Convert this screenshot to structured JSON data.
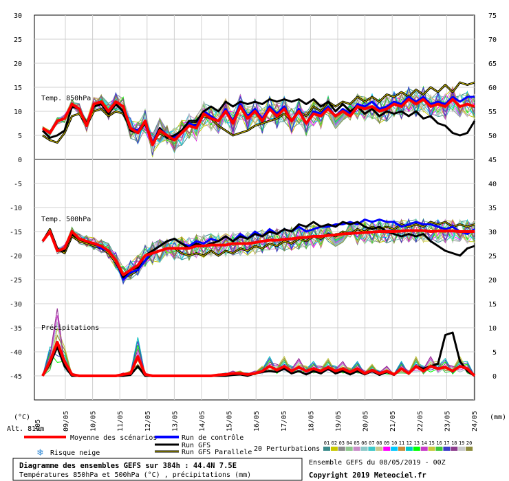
{
  "chart_data": {
    "type": "line",
    "title": "Diagramme des ensembles GEFS sur 384h : 44.4N 7.5E",
    "subtitle": "Températures 850hPa et 500hPa (°C) , précipitations (mm)",
    "left_axis": {
      "ticks": [
        "30",
        "25",
        "20",
        "15",
        "10",
        "5",
        "0",
        "-5",
        "-10",
        "-15",
        "-20",
        "-25",
        "-30",
        "-35",
        "-40",
        "-45"
      ],
      "unit": "(°C)"
    },
    "right_axis": {
      "ticks": [
        "75",
        "70",
        "65",
        "60",
        "55",
        "50",
        "45",
        "40",
        "35",
        "30",
        "25",
        "20",
        "15",
        "10",
        "5",
        "0"
      ],
      "unit": "(mm)"
    },
    "x_ticks": [
      "09/05",
      "10/05",
      "11/05",
      "12/05",
      "13/05",
      "14/05",
      "15/05",
      "16/05",
      "17/05",
      "18/05",
      "19/05",
      "20/05",
      "21/05",
      "22/05",
      "23/05",
      "24/05"
    ],
    "x_first_tick_partial": "/05",
    "alt_label": "Alt. 819m",
    "panels": {
      "t850": "Temp. 850hPa",
      "t500": "Temp. 500hPa",
      "precip": "Précipitations"
    },
    "t850_mean": [
      6.5,
      5.5,
      8,
      8.5,
      11.5,
      10.5,
      7,
      11.5,
      12,
      10,
      12,
      11,
      6.5,
      5.5,
      8,
      3,
      6,
      5,
      4,
      5.5,
      7,
      6.5,
      9.5,
      8.5,
      8,
      10,
      7.5,
      11,
      8.5,
      10,
      8,
      10.5,
      9,
      10.5,
      8,
      10,
      7.5,
      9.5,
      9,
      10.5,
      9,
      10,
      9,
      11,
      10.5,
      11,
      10,
      10.5,
      11.5,
      11,
      12.5,
      11.5,
      12.5,
      11,
      11.5,
      11,
      12.5,
      11,
      11.5,
      11
    ],
    "t850_control": [
      6.5,
      5.5,
      8,
      8.5,
      11.5,
      10.5,
      7,
      11.5,
      12,
      10,
      12,
      11,
      6.5,
      6,
      8,
      3.5,
      6.5,
      5,
      4.5,
      6,
      7.5,
      7,
      10,
      9,
      8,
      10.5,
      8,
      11.5,
      9,
      10.5,
      8.5,
      11,
      9.5,
      11,
      8,
      10.5,
      7.5,
      10,
      9.5,
      11,
      9,
      10.5,
      9.5,
      11.5,
      11,
      12,
      10.5,
      11,
      12,
      11.5,
      13,
      12,
      13,
      11.5,
      12,
      11.5,
      13,
      12,
      13,
      13
    ],
    "t850_gfs": [
      6,
      4.5,
      5,
      6,
      11,
      10.5,
      7.5,
      11,
      11.5,
      9.5,
      11.5,
      10,
      6,
      5.5,
      7.5,
      3,
      6.5,
      4.5,
      5,
      6,
      8,
      8,
      10,
      11,
      10,
      12,
      11,
      12,
      11.5,
      12,
      11.5,
      12.5,
      12,
      12.5,
      12,
      12.5,
      11.5,
      12.5,
      11,
      12,
      10,
      11.5,
      10,
      11,
      9.5,
      10.5,
      9,
      10,
      9.5,
      10,
      9,
      10,
      8.5,
      9,
      7.5,
      7,
      5.5,
      5,
      5.5,
      8
    ],
    "t850_parallel": [
      5,
      4,
      3.5,
      5.5,
      9,
      9.5,
      7,
      10,
      10.5,
      9,
      10,
      9.5,
      6.5,
      6,
      7.5,
      3.5,
      5.5,
      4.5,
      4,
      5.5,
      7.5,
      7.5,
      9,
      8.5,
      7,
      6,
      5,
      5.5,
      6,
      7,
      7.5,
      8,
      8.5,
      9.5,
      8,
      10,
      9,
      11,
      10,
      12,
      11,
      12,
      11.5,
      13,
      12,
      13,
      12,
      13.5,
      13,
      14,
      13,
      14.5,
      13.5,
      15,
      14,
      15.5,
      14,
      16,
      15.5,
      16
    ],
    "t500_mean": [
      -17,
      -15,
      -19,
      -18.5,
      -15,
      -16.5,
      -17,
      -17.5,
      -18,
      -19,
      -21,
      -24,
      -23,
      -22,
      -20,
      -19.5,
      -19,
      -18.5,
      -18.5,
      -18.5,
      -18.5,
      -18,
      -18,
      -17.8,
      -17.8,
      -17.8,
      -17.5,
      -17.5,
      -17.5,
      -17.3,
      -17,
      -16.8,
      -16.8,
      -16.6,
      -16.5,
      -16.3,
      -16.2,
      -16,
      -16,
      -15.8,
      -15.7,
      -15.5,
      -15.4,
      -15.3,
      -15.2,
      -15.1,
      -15,
      -15,
      -15,
      -14.9,
      -14.8,
      -14.8,
      -14.8,
      -15,
      -14.9,
      -14.9,
      -14.9,
      -15,
      -15,
      -15
    ],
    "t500_control": [
      -17,
      -15,
      -19,
      -18.5,
      -15,
      -16.5,
      -17,
      -17.5,
      -18.5,
      -19,
      -21,
      -25,
      -23.5,
      -23,
      -21,
      -19,
      -18,
      -17,
      -16.5,
      -17.5,
      -18,
      -17,
      -17.5,
      -16.5,
      -17,
      -16,
      -17,
      -15.5,
      -16.5,
      -15,
      -16,
      -14.5,
      -15.5,
      -14.5,
      -15,
      -14,
      -15,
      -14.5,
      -14,
      -14,
      -13.5,
      -13.5,
      -13,
      -13.5,
      -12.5,
      -13,
      -12.5,
      -13,
      -13,
      -14,
      -13.5,
      -13,
      -13.5,
      -13.5,
      -14,
      -14.5,
      -14,
      -15,
      -15.5,
      -14.5
    ],
    "t500_gfs": [
      -17,
      -15,
      -19,
      -19,
      -15.5,
      -16.5,
      -17,
      -17.5,
      -18,
      -19,
      -21,
      -24.5,
      -23,
      -22.5,
      -20,
      -19,
      -18,
      -17,
      -16.5,
      -17.5,
      -18.5,
      -17.5,
      -18,
      -17.5,
      -17,
      -16,
      -17,
      -16,
      -16.5,
      -15.5,
      -16,
      -15,
      -15.5,
      -14.5,
      -15,
      -13.5,
      -14,
      -13,
      -14,
      -13.5,
      -14,
      -13,
      -13.5,
      -13,
      -14,
      -14.5,
      -14,
      -15,
      -15.5,
      -16,
      -15.5,
      -16,
      -15.5,
      -17,
      -18,
      -19,
      -19.5,
      -20,
      -18.5,
      -18
    ],
    "t500_parallel": [
      -17,
      -14.5,
      -18.5,
      -19.5,
      -16,
      -17,
      -17.5,
      -18,
      -18.5,
      -19.5,
      -21.5,
      -24.5,
      -24,
      -23,
      -21,
      -19.5,
      -19,
      -18.5,
      -18.5,
      -19.5,
      -20,
      -19.5,
      -20,
      -19,
      -20,
      -19,
      -19.5,
      -18.5,
      -19,
      -18,
      -18.5,
      -17.5,
      -18,
      -17,
      -17.5,
      -16.5,
      -17,
      -16,
      -16.5,
      -15.5,
      -16,
      -15,
      -15.5,
      -14.5,
      -15,
      -14,
      -14.5,
      -14,
      -14.5,
      -13.5,
      -14,
      -13.5,
      -14,
      -13,
      -13.5,
      -13,
      -14,
      -13.5,
      -14,
      -13.5
    ],
    "precip_mean": [
      0,
      3,
      7,
      3,
      0.3,
      0,
      0,
      0,
      0,
      0,
      0,
      0.3,
      0.5,
      4,
      0.3,
      0,
      0,
      0,
      0,
      0,
      0,
      0,
      0,
      0,
      0.2,
      0.3,
      0.5,
      0.5,
      0.3,
      0.5,
      1,
      2,
      1.2,
      2,
      1,
      1.8,
      1,
      1.5,
      1,
      1.8,
      1,
      1.5,
      0.8,
      1.5,
      0.5,
      1.2,
      0.5,
      1,
      0.3,
      1.5,
      0.5,
      2,
      1,
      2,
      1.5,
      1.8,
      1,
      2,
      1.5,
      0
    ],
    "precip_gfs": [
      0,
      2.5,
      6,
      2,
      0,
      0,
      0,
      0,
      0,
      0,
      0,
      0,
      0.2,
      2,
      0,
      0,
      0,
      0,
      0,
      0,
      0,
      0,
      0,
      0,
      0,
      0,
      0.2,
      0.3,
      0,
      0.5,
      0.8,
      1,
      0.8,
      1.5,
      0.5,
      1,
      0.3,
      1,
      0.5,
      1.5,
      0.5,
      1,
      0.3,
      1,
      0.3,
      1,
      0.2,
      0.8,
      0.2,
      1.5,
      0.5,
      2,
      1.5,
      2,
      2.5,
      8.5,
      9,
      3,
      1,
      0
    ],
    "legend": {
      "mean": "Moyenne des scénarios",
      "snow": "Risque neige",
      "control": "Run de contrôle",
      "gfs": "Run GFS",
      "parallel": "Run GFS Parallele",
      "perturbations": "20 Perturbations",
      "pert_numbers": [
        "01",
        "02",
        "03",
        "04",
        "05",
        "06",
        "07",
        "08",
        "09",
        "10",
        "11",
        "12",
        "13",
        "14",
        "15",
        "16",
        "17",
        "18",
        "19",
        "20"
      ]
    },
    "footer": {
      "ensemble": "Ensemble GEFS du 08/05/2019 - 00Z",
      "copyright": "Copyright 2019 Meteociel.fr"
    },
    "colors": {
      "mean": "#ff0000",
      "control": "#0000ff",
      "gfs": "#000000",
      "parallel": "#b8a000",
      "perturbations": [
        "#3c8c8c",
        "#c8c800",
        "#8c8c8c",
        "#8cc88c",
        "#c88cc8",
        "#8cc8c8",
        "#3cc8c8",
        "#c8c88c",
        "#ff00ff",
        "#00c8ff",
        "#c88c3c",
        "#00c8c8",
        "#00ff00",
        "#c83cc8",
        "#c8c83c",
        "#3cc83c",
        "#3c3cc8",
        "#8c3c8c",
        "#c8c8c8",
        "#8c8c3c"
      ]
    }
  }
}
